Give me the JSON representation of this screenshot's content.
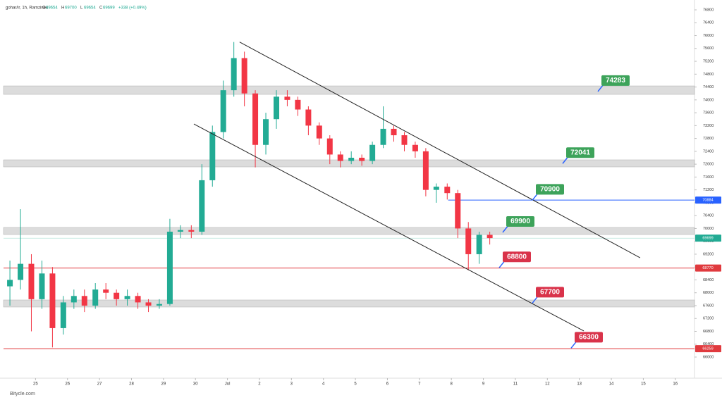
{
  "header": {
    "symbol": "gohar/ir, 1h, Ramzinex",
    "ohlc": [
      {
        "label": "O",
        "value": 69654
      },
      {
        "label": "H",
        "value": 69700
      },
      {
        "label": "L",
        "value": 69654
      },
      {
        "label": "C",
        "value": 69699
      }
    ],
    "change": "+338 (+0.49%)"
  },
  "footer": "Bitycle.com",
  "chart_data": {
    "type": "candlestick",
    "up_color": "#22ab94",
    "down_color": "#f23645",
    "x": [
      0.2,
      0.53,
      0.87,
      1.2,
      1.53,
      1.87,
      2.2,
      2.53,
      2.87,
      3.2,
      3.53,
      3.87,
      4.2,
      4.53,
      4.87,
      5.2,
      5.53,
      5.87,
      6.2,
      6.53,
      6.87,
      7.2,
      7.53,
      7.87,
      8.2,
      8.53,
      8.87,
      9.2,
      9.53,
      9.87,
      10.2,
      10.53,
      10.87,
      11.2,
      11.53,
      11.87,
      12.2,
      12.53,
      12.87,
      13.2,
      13.53,
      13.87,
      14.2,
      14.53,
      14.87,
      15.2
    ],
    "open": [
      68200,
      68400,
      68900,
      67800,
      68600,
      66900,
      67700,
      67900,
      67600,
      68100,
      68000,
      67800,
      67900,
      67700,
      67600,
      67650,
      69900,
      69950,
      69900,
      71500,
      73000,
      74300,
      75300,
      74200,
      72600,
      73400,
      74100,
      74000,
      73700,
      73200,
      72800,
      72300,
      72100,
      72200,
      72100,
      72600,
      73100,
      72900,
      72600,
      72400,
      71200,
      71300,
      71100,
      70000,
      69200,
      69800
    ],
    "high": [
      69000,
      70600,
      69200,
      69000,
      68800,
      67900,
      68100,
      68100,
      68300,
      68300,
      68100,
      68100,
      68000,
      67800,
      67800,
      70300,
      70100,
      70100,
      72000,
      73200,
      74600,
      75800,
      75500,
      74300,
      73600,
      74300,
      74300,
      74100,
      73800,
      73300,
      72900,
      72400,
      72400,
      72300,
      72700,
      73800,
      73200,
      73000,
      72700,
      72500,
      71400,
      71400,
      71200,
      70200,
      69900,
      69900
    ],
    "low": [
      67600,
      68100,
      66800,
      67500,
      66300,
      66700,
      67500,
      67400,
      67500,
      67800,
      67600,
      67600,
      67500,
      67400,
      67500,
      67600,
      69700,
      69700,
      69800,
      71300,
      72800,
      74100,
      73800,
      71900,
      72300,
      73100,
      73800,
      73500,
      72900,
      72600,
      72000,
      71900,
      72000,
      71950,
      72000,
      72500,
      72700,
      72400,
      72200,
      71000,
      70800,
      70900,
      69700,
      68700,
      68900,
      69500
    ],
    "close": [
      68400,
      68900,
      67800,
      68600,
      66900,
      67700,
      67900,
      67600,
      68100,
      68000,
      67800,
      67900,
      67700,
      67600,
      67650,
      69900,
      69950,
      69900,
      71500,
      73000,
      74300,
      75300,
      74200,
      72600,
      73400,
      74100,
      74000,
      73700,
      73200,
      72800,
      72300,
      72100,
      72200,
      72100,
      72600,
      73100,
      72900,
      72600,
      72400,
      71200,
      71300,
      71100,
      70000,
      69200,
      69800,
      69700
    ],
    "xlim": [
      0,
      21.6
    ],
    "ylim": [
      65343,
      77107
    ],
    "xticks": [
      {
        "value": 1,
        "label": "25"
      },
      {
        "value": 2,
        "label": "26"
      },
      {
        "value": 3,
        "label": "27"
      },
      {
        "value": 4,
        "label": "28"
      },
      {
        "value": 5,
        "label": "29"
      },
      {
        "value": 6,
        "label": "30"
      },
      {
        "value": 7,
        "label": "Jul"
      },
      {
        "value": 8,
        "label": "2"
      },
      {
        "value": 9,
        "label": "3"
      },
      {
        "value": 10,
        "label": "4"
      },
      {
        "value": 11,
        "label": "5"
      },
      {
        "value": 12,
        "label": "6"
      },
      {
        "value": 13,
        "label": "7"
      },
      {
        "value": 14,
        "label": "8"
      },
      {
        "value": 15,
        "label": "9"
      },
      {
        "value": 16,
        "label": "11"
      },
      {
        "value": 17,
        "label": "12"
      },
      {
        "value": 18,
        "label": "13"
      },
      {
        "value": 19,
        "label": "14"
      },
      {
        "value": 20,
        "label": "15"
      },
      {
        "value": 21,
        "label": "16"
      }
    ],
    "yticks": [
      66000,
      66400,
      66800,
      67200,
      67600,
      68000,
      68400,
      68800,
      69200,
      69600,
      70000,
      70400,
      70800,
      71200,
      71600,
      72000,
      72400,
      72800,
      73200,
      73600,
      74000,
      74400,
      74800,
      75200,
      75600,
      76000,
      76400,
      76800
    ],
    "zones": [
      {
        "low": 74171,
        "high": 74434
      },
      {
        "low": 71915,
        "high": 72134
      },
      {
        "low": 69812,
        "high": 70031
      },
      {
        "low": 67556,
        "high": 67775
      }
    ],
    "levels": [
      {
        "value": 70884,
        "color": "#2962ff",
        "from": 13.9
      },
      {
        "value": 69699,
        "color": "#22ab94",
        "from": 0
      },
      {
        "value": 68770,
        "color": "#e03a3e",
        "from": 0
      },
      {
        "value": 66259,
        "color": "#e03a3e",
        "from": 0
      }
    ],
    "trendlines": [
      {
        "x": [
          7.38,
          19.9
        ],
        "y": [
          75800,
          69089
        ]
      },
      {
        "x": [
          5.95,
          18.14
        ],
        "y": [
          73251,
          66811
        ]
      }
    ],
    "annotations": [
      {
        "value": 74283,
        "color": "#3da35a"
      },
      {
        "value": 72041,
        "color": "#3da35a"
      },
      {
        "value": 70900,
        "color": "#3da35a"
      },
      {
        "value": 69900,
        "color": "#3da35a"
      },
      {
        "value": 68800,
        "color": "#d9334a"
      },
      {
        "value": 67700,
        "color": "#d9334a"
      },
      {
        "value": 66300,
        "color": "#d9334a"
      }
    ]
  }
}
